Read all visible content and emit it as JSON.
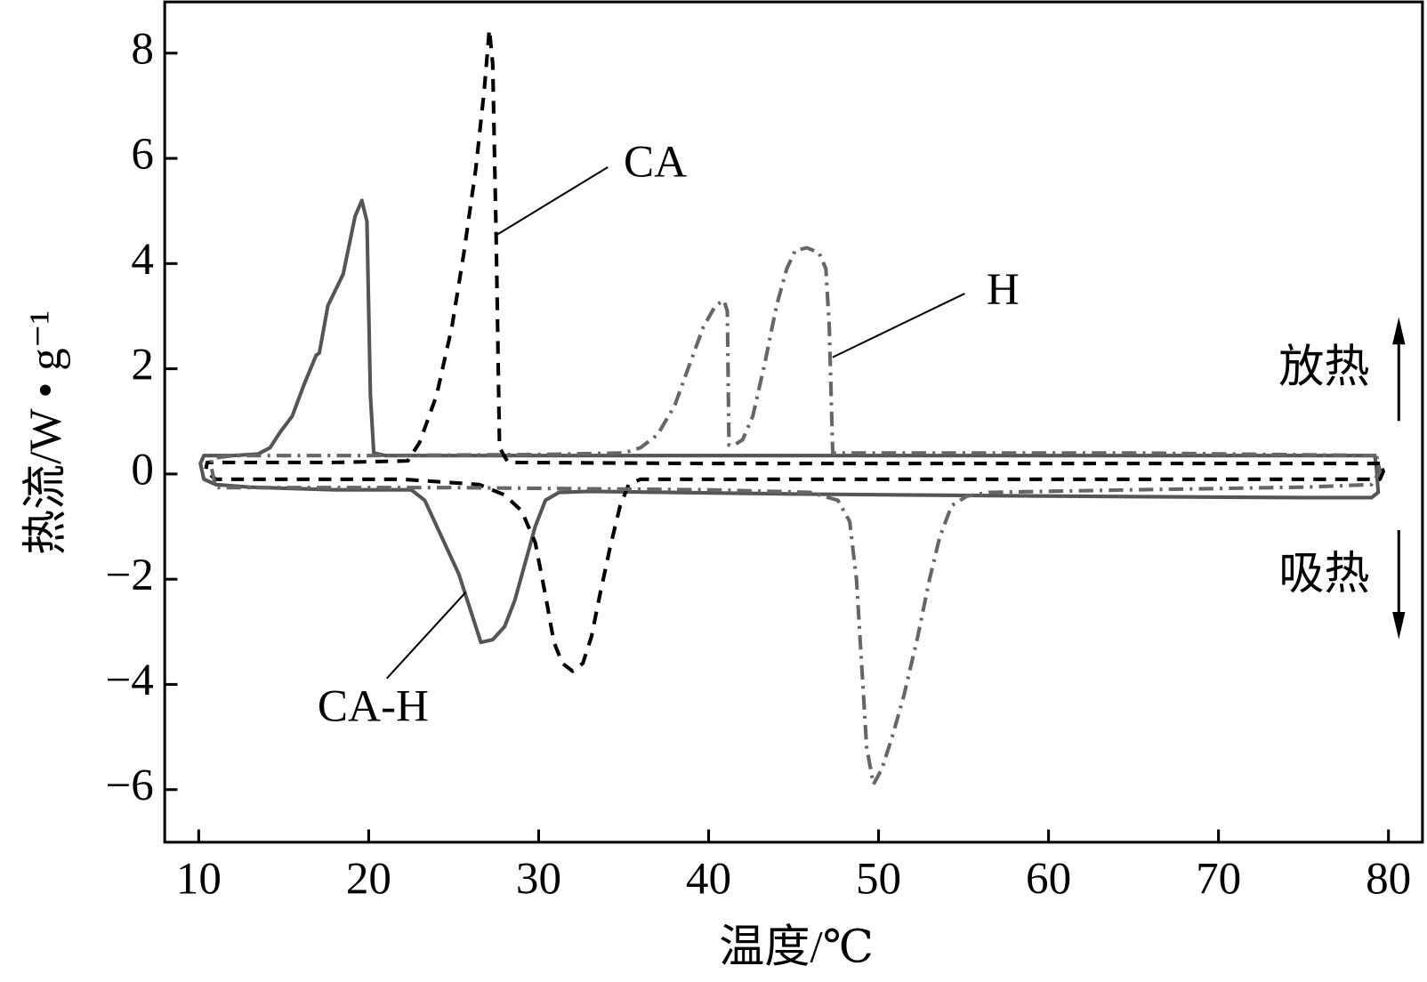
{
  "chart_data": {
    "type": "line",
    "xlabel": "温度/℃",
    "ylabel": "热流/W • g⁻¹",
    "xlim": [
      8,
      82
    ],
    "xticks": [
      10,
      20,
      30,
      40,
      50,
      60,
      70,
      80
    ],
    "ylim": [
      -7,
      9
    ],
    "yticks": [
      {
        "value": -6,
        "label": "−6"
      },
      {
        "value": -4,
        "label": "−4"
      },
      {
        "value": -2,
        "label": "−2"
      },
      0,
      2,
      4,
      6,
      8
    ],
    "annotations": [
      "放热",
      "吸热"
    ],
    "series": [
      {
        "name": "CA-H",
        "color": "#555555",
        "dash": "solid",
        "x": [
          79.2,
          60,
          40,
          25,
          21,
          20.3,
          20.1,
          19.9,
          19.6,
          19.2,
          18.5,
          17.6,
          17.1,
          16.9,
          16.2,
          15.5,
          14.8,
          14.2,
          13.5,
          12,
          10.3,
          10.1,
          10.3,
          11,
          13,
          18,
          22.5,
          23.3,
          24.3,
          25.3,
          26.0,
          26.6,
          27.3,
          28.0,
          28.6,
          29.2,
          29.8,
          30.4,
          31.2,
          33,
          45,
          60,
          75,
          79.0,
          79.4,
          79.3,
          79.2
        ],
        "values": [
          0.35,
          0.35,
          0.35,
          0.35,
          0.35,
          0.4,
          1.5,
          4.8,
          5.2,
          4.9,
          3.8,
          3.2,
          2.3,
          2.25,
          1.7,
          1.1,
          0.8,
          0.5,
          0.38,
          0.35,
          0.35,
          0.2,
          -0.1,
          -0.2,
          -0.25,
          -0.3,
          -0.3,
          -0.5,
          -1.2,
          -1.9,
          -2.6,
          -3.2,
          -3.15,
          -2.9,
          -2.4,
          -1.7,
          -1.0,
          -0.5,
          -0.35,
          -0.33,
          -0.38,
          -0.42,
          -0.45,
          -0.45,
          -0.35,
          0.1,
          0.35
        ]
      },
      {
        "name": "CA",
        "color": "#000000",
        "dash": "14 10",
        "x": [
          79.5,
          60,
          40,
          28.2,
          27.7,
          27.5,
          27.3,
          27.1,
          26.8,
          26.3,
          25.6,
          24.9,
          24.0,
          23.0,
          22.3,
          18,
          12,
          10.5,
          10.4,
          11,
          16,
          22,
          26.5,
          28,
          29.0,
          29.8,
          30.4,
          30.9,
          31.4,
          32.0,
          32.6,
          33.1,
          33.6,
          34.2,
          34.8,
          35.3,
          36,
          45,
          60,
          75,
          79.5,
          79.7,
          79.5
        ],
        "values": [
          0.2,
          0.2,
          0.2,
          0.22,
          0.5,
          4.5,
          7.8,
          8.45,
          7.3,
          5.8,
          4.2,
          2.8,
          1.5,
          0.6,
          0.25,
          0.22,
          0.22,
          0.22,
          0.05,
          -0.1,
          -0.1,
          -0.1,
          -0.2,
          -0.4,
          -0.7,
          -1.3,
          -2.3,
          -3.2,
          -3.6,
          -3.75,
          -3.6,
          -3.1,
          -2.3,
          -1.4,
          -0.6,
          -0.2,
          -0.1,
          -0.1,
          -0.1,
          -0.1,
          -0.1,
          0.05,
          0.2
        ]
      },
      {
        "name": "H",
        "color": "#666666",
        "dash": "16 7 3 7",
        "x": [
          79.3,
          65,
          50,
          47.3,
          47.1,
          46.9,
          46.5,
          45.8,
          45.1,
          44.6,
          44.0,
          43.3,
          42.6,
          42.0,
          41.5,
          41.2,
          41.1,
          40.9,
          40.4,
          39.7,
          38.9,
          38.0,
          37.0,
          36.0,
          35.0,
          30,
          20,
          12,
          10.8,
          10.7,
          11,
          15,
          25,
          40,
          46,
          47.6,
          48.3,
          48.7,
          49.0,
          49.3,
          49.7,
          50.2,
          50.8,
          51.5,
          52.3,
          53.0,
          53.6,
          54.3,
          55.2,
          56.5,
          65,
          75,
          79.0,
          79.5,
          79.3
        ],
        "values": [
          0.35,
          0.4,
          0.4,
          0.4,
          2.8,
          3.9,
          4.2,
          4.3,
          4.25,
          3.9,
          3.2,
          2.1,
          1.1,
          0.65,
          0.55,
          0.55,
          3.1,
          3.3,
          3.2,
          2.8,
          2.1,
          1.3,
          0.75,
          0.5,
          0.4,
          0.37,
          0.35,
          0.35,
          0.3,
          0.2,
          -0.26,
          -0.26,
          -0.26,
          -0.3,
          -0.35,
          -0.5,
          -0.9,
          -2.0,
          -3.6,
          -5.2,
          -5.9,
          -5.6,
          -5.0,
          -4.2,
          -3.1,
          -2.0,
          -1.2,
          -0.6,
          -0.42,
          -0.35,
          -0.3,
          -0.25,
          -0.2,
          0.05,
          0.35
        ]
      }
    ]
  }
}
